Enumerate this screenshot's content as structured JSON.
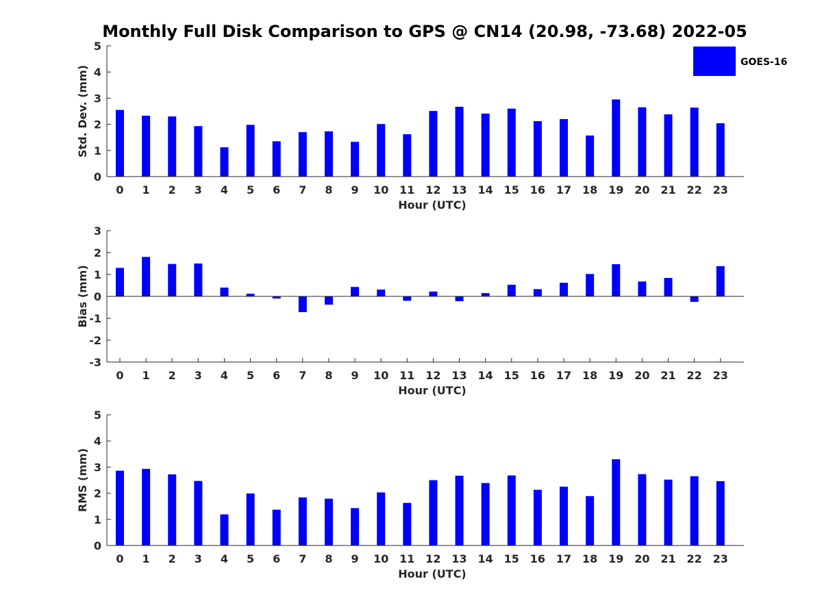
{
  "title": "Monthly Full Disk Comparison to GPS @ CN14 (20.98, -73.68) 2022-05",
  "legend": {
    "label": "GOES-16",
    "color": "#0000ff"
  },
  "chart_data": [
    {
      "type": "bar",
      "name": "std-dev",
      "title": "Monthly Full Disk Comparison to GPS @ CN14 (20.98, -73.68) 2022-05",
      "xlabel": "Hour (UTC)",
      "ylabel": "Std. Dev. (mm)",
      "ylim": [
        0,
        5
      ],
      "yticks": [
        "0",
        "1",
        "2",
        "3",
        "4",
        "5"
      ],
      "categories": [
        "0",
        "1",
        "2",
        "3",
        "4",
        "5",
        "6",
        "7",
        "8",
        "9",
        "10",
        "11",
        "12",
        "13",
        "14",
        "15",
        "16",
        "17",
        "18",
        "19",
        "20",
        "21",
        "22",
        "23"
      ],
      "series": [
        {
          "name": "GOES-16",
          "values": [
            2.55,
            2.33,
            2.3,
            1.93,
            1.12,
            1.98,
            1.35,
            1.7,
            1.73,
            1.33,
            2.01,
            1.62,
            2.51,
            2.67,
            2.41,
            2.6,
            2.12,
            2.2,
            1.57,
            2.95,
            2.65,
            2.38,
            2.64,
            2.04
          ]
        }
      ]
    },
    {
      "type": "bar",
      "name": "bias",
      "xlabel": "Hour (UTC)",
      "ylabel": "Bias (mm)",
      "ylim": [
        -3,
        3
      ],
      "yticks": [
        "-3",
        "-2",
        "-1",
        "0",
        "1",
        "2",
        "3"
      ],
      "categories": [
        "0",
        "1",
        "2",
        "3",
        "4",
        "5",
        "6",
        "7",
        "8",
        "9",
        "10",
        "11",
        "12",
        "13",
        "14",
        "15",
        "16",
        "17",
        "18",
        "19",
        "20",
        "21",
        "22",
        "23"
      ],
      "series": [
        {
          "name": "GOES-16",
          "values": [
            1.3,
            1.8,
            1.48,
            1.5,
            0.4,
            0.12,
            -0.1,
            -0.72,
            -0.38,
            0.43,
            0.31,
            -0.2,
            0.22,
            -0.22,
            0.15,
            0.53,
            0.33,
            0.62,
            1.02,
            1.47,
            0.68,
            0.84,
            -0.25,
            1.38
          ]
        }
      ]
    },
    {
      "type": "bar",
      "name": "rms",
      "xlabel": "Hour (UTC)",
      "ylabel": "RMS (mm)",
      "ylim": [
        0,
        5
      ],
      "yticks": [
        "0",
        "1",
        "2",
        "3",
        "4",
        "5"
      ],
      "categories": [
        "0",
        "1",
        "2",
        "3",
        "4",
        "5",
        "6",
        "7",
        "8",
        "9",
        "10",
        "11",
        "12",
        "13",
        "14",
        "15",
        "16",
        "17",
        "18",
        "19",
        "20",
        "21",
        "22",
        "23"
      ],
      "series": [
        {
          "name": "GOES-16",
          "values": [
            2.86,
            2.93,
            2.72,
            2.47,
            1.19,
            1.99,
            1.37,
            1.84,
            1.79,
            1.43,
            2.03,
            1.63,
            2.5,
            2.67,
            2.39,
            2.68,
            2.13,
            2.25,
            1.89,
            3.3,
            2.73,
            2.52,
            2.65,
            2.46
          ]
        }
      ]
    }
  ]
}
